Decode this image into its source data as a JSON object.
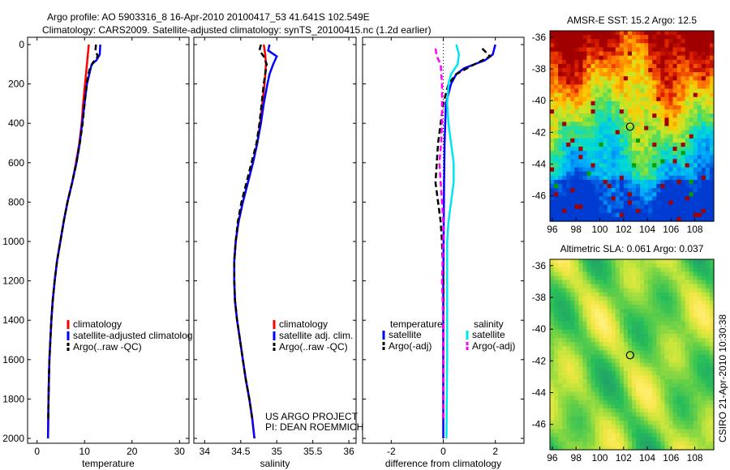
{
  "header": {
    "line1": "Argo profile: AO 5903316_8 16-Apr-2010 20100417_53 41.641S 102.549E",
    "line2": "Climatology: CARS2009. Satellite-adjusted climatology: synTS_20100415.nc (1.2d earlier)"
  },
  "colors": {
    "clim": "#ff0000",
    "sat": "#0000ff",
    "argo": "#000000",
    "sat_s": "#00e5ee",
    "argo_s": "#ff00ff"
  },
  "chart_data": [
    {
      "type": "line",
      "title": "",
      "xlabel": "temperature",
      "ylabel": "",
      "xlim": [
        -2,
        32
      ],
      "ylim": [
        2040,
        0
      ],
      "x_ticks": [
        "0",
        "10",
        "20",
        "30"
      ],
      "y_ticks": [
        "0",
        "200",
        "400",
        "600",
        "800",
        "1000",
        "1200",
        "1400",
        "1600",
        "1800",
        "2000"
      ],
      "legend": [
        "climatology",
        "satellite-adjusted climatolog",
        "Argo(..raw -QC)"
      ],
      "series": [
        {
          "name": "climatology",
          "style": "solid",
          "color": "clim",
          "points": [
            [
              10.9,
              0
            ],
            [
              10.7,
              50
            ],
            [
              10.5,
              100
            ],
            [
              10.3,
              150
            ],
            [
              10.1,
              200
            ],
            [
              9.7,
              300
            ],
            [
              9.4,
              400
            ],
            [
              8.9,
              500
            ],
            [
              8.2,
              600
            ],
            [
              7.4,
              700
            ],
            [
              6.4,
              800
            ],
            [
              5.6,
              900
            ],
            [
              4.9,
              1000
            ],
            [
              4.2,
              1100
            ],
            [
              3.7,
              1200
            ],
            [
              3.3,
              1300
            ],
            [
              3.0,
              1400
            ],
            [
              2.8,
              1500
            ],
            [
              2.6,
              1600
            ],
            [
              2.5,
              1700
            ],
            [
              2.4,
              1800
            ],
            [
              2.35,
              1900
            ],
            [
              2.3,
              2000
            ]
          ]
        },
        {
          "name": "satellite-adjusted",
          "style": "solid",
          "color": "sat",
          "points": [
            [
              13.3,
              0
            ],
            [
              13.2,
              50
            ],
            [
              12.5,
              80
            ],
            [
              11.5,
              100
            ],
            [
              11.0,
              150
            ],
            [
              10.5,
              200
            ],
            [
              10.0,
              300
            ],
            [
              9.5,
              400
            ],
            [
              9.0,
              500
            ],
            [
              8.3,
              600
            ],
            [
              7.4,
              700
            ],
            [
              6.4,
              800
            ],
            [
              5.6,
              900
            ],
            [
              4.9,
              1000
            ],
            [
              4.2,
              1100
            ],
            [
              3.7,
              1200
            ],
            [
              3.3,
              1300
            ],
            [
              3.0,
              1400
            ],
            [
              2.8,
              1500
            ],
            [
              2.6,
              1600
            ],
            [
              2.5,
              1700
            ],
            [
              2.4,
              1800
            ],
            [
              2.35,
              1900
            ],
            [
              2.3,
              2000
            ]
          ]
        },
        {
          "name": "Argo",
          "style": "dashed",
          "color": "argo",
          "points": [
            [
              12.4,
              0
            ],
            [
              12.3,
              30
            ],
            [
              12.8,
              60
            ],
            [
              11.8,
              90
            ],
            [
              11.0,
              130
            ],
            [
              10.6,
              180
            ],
            [
              10.1,
              280
            ],
            [
              9.6,
              400
            ],
            [
              9.0,
              500
            ],
            [
              8.3,
              600
            ],
            [
              7.4,
              700
            ],
            [
              6.4,
              800
            ],
            [
              5.6,
              900
            ],
            [
              4.9,
              1000
            ],
            [
              4.2,
              1100
            ],
            [
              3.7,
              1200
            ],
            [
              3.3,
              1300
            ],
            [
              3.0,
              1400
            ],
            [
              2.8,
              1500
            ],
            [
              2.6,
              1600
            ],
            [
              2.5,
              1700
            ],
            [
              2.4,
              1800
            ],
            [
              2.35,
              1900
            ]
          ]
        }
      ]
    },
    {
      "type": "line",
      "xlabel": "salinity",
      "xlim": [
        33.85,
        36.1
      ],
      "ylim": [
        2040,
        0
      ],
      "x_ticks": [
        "34",
        "34.5",
        "35",
        "35.5",
        "36"
      ],
      "legend": [
        "climatology",
        "satellite adj. clim.",
        "Argo(..raw -QC)"
      ],
      "annotation": [
        "US ARGO PROJECT",
        "PI: DEAN ROEMMICH"
      ],
      "series": [
        {
          "name": "climatology",
          "style": "solid",
          "color": "clim",
          "points": [
            [
              34.82,
              0
            ],
            [
              34.84,
              50
            ],
            [
              34.85,
              100
            ],
            [
              34.84,
              150
            ],
            [
              34.83,
              200
            ],
            [
              34.8,
              300
            ],
            [
              34.77,
              400
            ],
            [
              34.73,
              500
            ],
            [
              34.67,
              600
            ],
            [
              34.6,
              700
            ],
            [
              34.53,
              800
            ],
            [
              34.47,
              900
            ],
            [
              34.43,
              1000
            ],
            [
              34.41,
              1100
            ],
            [
              34.41,
              1200
            ],
            [
              34.42,
              1300
            ],
            [
              34.45,
              1400
            ],
            [
              34.49,
              1500
            ],
            [
              34.53,
              1600
            ],
            [
              34.57,
              1700
            ],
            [
              34.62,
              1800
            ],
            [
              34.66,
              1900
            ],
            [
              34.69,
              2000
            ]
          ]
        },
        {
          "name": "satellite adj. clim.",
          "style": "solid",
          "color": "sat",
          "points": [
            [
              34.9,
              0
            ],
            [
              34.88,
              30
            ],
            [
              35.0,
              60
            ],
            [
              34.95,
              100
            ],
            [
              34.9,
              150
            ],
            [
              34.87,
              200
            ],
            [
              34.82,
              300
            ],
            [
              34.78,
              400
            ],
            [
              34.73,
              500
            ],
            [
              34.67,
              600
            ],
            [
              34.6,
              700
            ],
            [
              34.53,
              800
            ],
            [
              34.47,
              900
            ],
            [
              34.43,
              1000
            ],
            [
              34.41,
              1100
            ],
            [
              34.41,
              1200
            ],
            [
              34.42,
              1300
            ],
            [
              34.45,
              1400
            ],
            [
              34.49,
              1500
            ],
            [
              34.53,
              1600
            ],
            [
              34.57,
              1700
            ],
            [
              34.62,
              1800
            ],
            [
              34.66,
              1900
            ],
            [
              34.69,
              2000
            ]
          ]
        },
        {
          "name": "Argo",
          "style": "dashed",
          "color": "argo",
          "points": [
            [
              34.78,
              0
            ],
            [
              34.76,
              30
            ],
            [
              34.82,
              60
            ],
            [
              34.86,
              100
            ],
            [
              34.84,
              150
            ],
            [
              34.82,
              200
            ],
            [
              34.79,
              300
            ],
            [
              34.76,
              400
            ],
            [
              34.72,
              500
            ],
            [
              34.65,
              600
            ],
            [
              34.58,
              700
            ],
            [
              34.51,
              800
            ],
            [
              34.46,
              900
            ],
            [
              34.43,
              1000
            ],
            [
              34.41,
              1100
            ],
            [
              34.41,
              1200
            ],
            [
              34.42,
              1300
            ],
            [
              34.45,
              1400
            ],
            [
              34.49,
              1500
            ],
            [
              34.53,
              1600
            ],
            [
              34.57,
              1700
            ],
            [
              34.62,
              1800
            ],
            [
              34.66,
              1900
            ]
          ]
        }
      ]
    },
    {
      "type": "line",
      "xlabel": "difference from climatology",
      "xlim": [
        -3.1,
        3.1
      ],
      "ylim": [
        2040,
        0
      ],
      "x_ticks": [
        "-2",
        "0",
        "2"
      ],
      "legend_groups": [
        {
          "title": "temperature",
          "items": [
            "satellite",
            "Argo(-adj)"
          ]
        },
        {
          "title": "salinity",
          "items": [
            "satellite",
            "Argo(-adj)"
          ]
        }
      ],
      "series": [
        {
          "name": "temperature satellite",
          "style": "solid",
          "color": "sat",
          "points": [
            [
              2.0,
              0
            ],
            [
              1.9,
              50
            ],
            [
              1.6,
              80
            ],
            [
              0.8,
              120
            ],
            [
              0.5,
              150
            ],
            [
              0.3,
              200
            ],
            [
              0.2,
              250
            ],
            [
              0.1,
              300
            ],
            [
              0.05,
              500
            ],
            [
              0.03,
              700
            ],
            [
              0.02,
              900
            ],
            [
              0.0,
              1200
            ],
            [
              0.0,
              2000
            ]
          ]
        },
        {
          "name": "temperature Argo(-adj)",
          "style": "dashed",
          "color": "argo",
          "points": [
            [
              1.5,
              20
            ],
            [
              1.8,
              60
            ],
            [
              1.2,
              100
            ],
            [
              0.5,
              150
            ],
            [
              0.2,
              200
            ],
            [
              0.0,
              300
            ],
            [
              -0.1,
              400
            ],
            [
              -0.2,
              500
            ],
            [
              -0.25,
              600
            ],
            [
              -0.3,
              700
            ],
            [
              -0.2,
              800
            ],
            [
              -0.1,
              900
            ],
            [
              -0.05,
              1000
            ],
            [
              0.0,
              1200
            ],
            [
              0.0,
              1900
            ]
          ]
        },
        {
          "name": "salinity satellite",
          "style": "solid",
          "color": "sat_s",
          "points": [
            [
              0.5,
              0
            ],
            [
              0.6,
              50
            ],
            [
              0.55,
              100
            ],
            [
              0.3,
              150
            ],
            [
              0.2,
              200
            ],
            [
              0.15,
              300
            ],
            [
              0.2,
              400
            ],
            [
              0.3,
              500
            ],
            [
              0.4,
              600
            ],
            [
              0.4,
              700
            ],
            [
              0.3,
              800
            ],
            [
              0.2,
              900
            ],
            [
              0.15,
              1000
            ],
            [
              0.15,
              1200
            ],
            [
              0.15,
              1600
            ],
            [
              0.12,
              2000
            ]
          ]
        },
        {
          "name": "salinity Argo(-adj)",
          "style": "dashed",
          "color": "argo_s",
          "points": [
            [
              -0.3,
              20
            ],
            [
              -0.25,
              60
            ],
            [
              -0.1,
              100
            ],
            [
              -0.05,
              200
            ],
            [
              -0.05,
              400
            ],
            [
              -0.08,
              500
            ],
            [
              -0.15,
              600
            ],
            [
              -0.1,
              700
            ],
            [
              -0.05,
              800
            ],
            [
              0.0,
              900
            ],
            [
              0.0,
              1000
            ],
            [
              -0.05,
              1200
            ],
            [
              0.0,
              1400
            ],
            [
              0.0,
              1900
            ]
          ]
        }
      ]
    },
    {
      "type": "heatmap",
      "title": "AMSR-E SST: 15.2 Argo: 12.5",
      "x_ticks": [
        "96",
        "98",
        "100",
        "102",
        "104",
        "106",
        "108"
      ],
      "y_ticks": [
        "-36",
        "-38",
        "-40",
        "-42",
        "-44",
        "-46"
      ],
      "xlim": [
        95.8,
        109.6
      ],
      "ylim": [
        -35.6,
        -47.6
      ],
      "marker": {
        "lon": 102.549,
        "lat": -41.641
      }
    },
    {
      "type": "heatmap",
      "title": "Altimetric SLA: 0.061 Argo: 0.037",
      "x_ticks": [
        "96",
        "98",
        "100",
        "102",
        "104",
        "106",
        "108"
      ],
      "y_ticks": [
        "-36",
        "-38",
        "-40",
        "-42",
        "-44",
        "-46"
      ],
      "xlim": [
        95.8,
        109.6
      ],
      "ylim": [
        -35.6,
        -47.6
      ],
      "marker": {
        "lon": 102.549,
        "lat": -41.641
      }
    }
  ],
  "side_label": "CSIRO 21-Apr-2010 10:30:38"
}
